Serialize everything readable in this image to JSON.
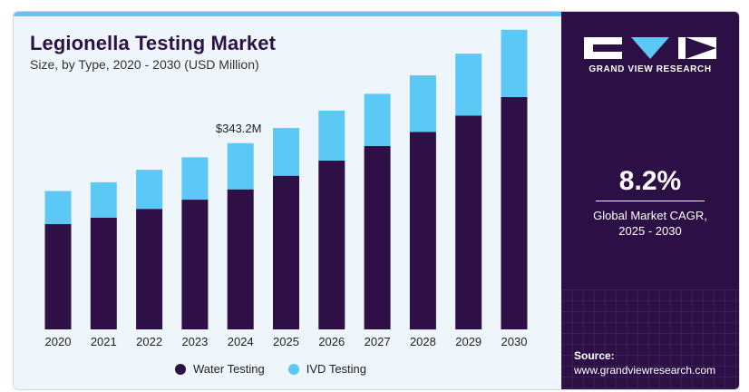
{
  "header": {
    "title": "Legionella Testing Market",
    "subtitle": "Size, by Type, 2020 - 2030 (USD Million)"
  },
  "colors": {
    "water_testing": "#2e1046",
    "ivd_testing": "#5bc8f5",
    "panel": "#2b0f45"
  },
  "chart_data": {
    "type": "bar",
    "stacked": true,
    "categories": [
      "2020",
      "2021",
      "2022",
      "2023",
      "2024",
      "2025",
      "2026",
      "2027",
      "2028",
      "2029",
      "2030"
    ],
    "series": [
      {
        "name": "Water Testing",
        "values": [
          194,
          206,
          222,
          239,
          258,
          283,
          311,
          338,
          364,
          394,
          428
        ]
      },
      {
        "name": "IVD Testing",
        "values": [
          61,
          65,
          72,
          78,
          85,
          88,
          92,
          96,
          104,
          114,
          124
        ]
      }
    ],
    "annotation": {
      "category": "2024",
      "text": "$343.2M"
    },
    "ylim": [
      0,
      560
    ],
    "legend": "bottom",
    "grid": false
  },
  "legend": {
    "water_label": "Water Testing",
    "ivd_label": "IVD Testing"
  },
  "side_panel": {
    "brand": "GRAND VIEW RESEARCH",
    "cagr_value": "8.2%",
    "cagr_label_line1": "Global Market CAGR,",
    "cagr_label_line2": "2025 - 2030",
    "source_title": "Source:",
    "source_url": "www.grandviewresearch.com",
    "logo_icon": "gvr-logo-icon"
  }
}
